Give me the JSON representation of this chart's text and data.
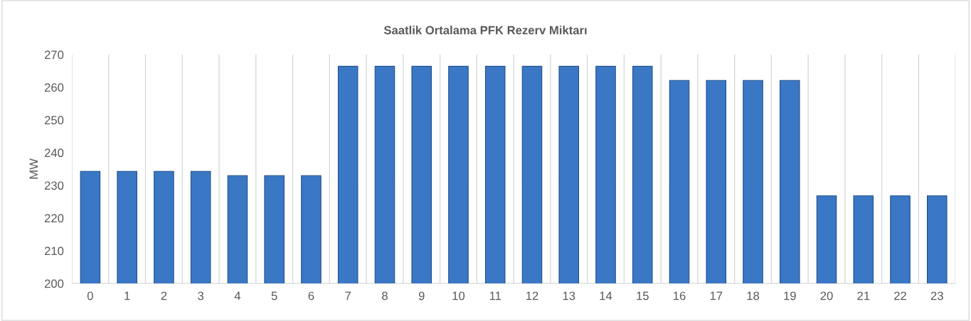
{
  "chart_data": {
    "type": "bar",
    "title": "Saatlik Ortalama PFK Rezerv Miktarı",
    "ylabel": "MW",
    "categories": [
      "0",
      "1",
      "2",
      "3",
      "4",
      "5",
      "6",
      "7",
      "8",
      "9",
      "10",
      "11",
      "12",
      "13",
      "14",
      "15",
      "16",
      "17",
      "18",
      "19",
      "20",
      "21",
      "22",
      "23"
    ],
    "values": [
      234.3,
      234.3,
      234.3,
      234.3,
      233,
      233,
      233,
      266.4,
      266.4,
      266.4,
      266.4,
      266.4,
      266.4,
      266.4,
      266.4,
      266.4,
      262.1,
      262.1,
      262.1,
      262.1,
      226.8,
      226.8,
      226.8,
      226.8
    ],
    "color": "#3a78c6",
    "ylim": [
      200,
      270
    ],
    "yticks": [
      200,
      210,
      220,
      230,
      240,
      250,
      260,
      270
    ],
    "grid": "x"
  }
}
